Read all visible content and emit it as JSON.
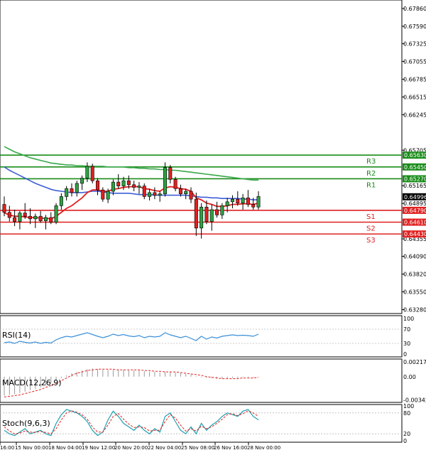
{
  "chart_data": {
    "type": "candlestick",
    "main": {
      "y_ticks": [
        "0.67860",
        "0.67590",
        "0.67325",
        "0.67055",
        "0.66785",
        "0.66515",
        "0.66245",
        "0.65705",
        "0.65165",
        "0.64895",
        "0.64355",
        "0.64090",
        "0.63820",
        "0.63550",
        "0.63280"
      ],
      "y_tick_values": [
        0.6786,
        0.6759,
        0.67325,
        0.67055,
        0.66785,
        0.66515,
        0.66245,
        0.65705,
        0.65165,
        0.64895,
        0.64355,
        0.6409,
        0.6382,
        0.6355,
        0.6328
      ],
      "ylim": [
        0.6322,
        0.6799
      ],
      "current_price": "0.64996",
      "current_price_value": 0.64996,
      "levels": [
        {
          "name": "R3",
          "label": "0.65630",
          "value": 0.6563,
          "color": "#1a8c1a"
        },
        {
          "name": "R2",
          "label": "0.65450",
          "value": 0.6545,
          "color": "#1a8c1a"
        },
        {
          "name": "R1",
          "label": "0.65270",
          "value": 0.6527,
          "color": "#1a8c1a"
        },
        {
          "name": "S1",
          "label": "0.64790",
          "value": 0.6479,
          "color": "#e02020"
        },
        {
          "name": "S2",
          "label": "0.64610",
          "value": 0.6461,
          "color": "#e02020"
        },
        {
          "name": "S3",
          "label": "0.64430",
          "value": 0.6443,
          "color": "#e02020"
        }
      ],
      "candles": [
        [
          0.6488,
          0.65,
          0.647,
          0.6476
        ],
        [
          0.6476,
          0.6486,
          0.6462,
          0.6468
        ],
        [
          0.6468,
          0.648,
          0.6455,
          0.6462
        ],
        [
          0.6462,
          0.6478,
          0.645,
          0.6475
        ],
        [
          0.6475,
          0.649,
          0.6466,
          0.647
        ],
        [
          0.647,
          0.6482,
          0.6458,
          0.6466
        ],
        [
          0.6466,
          0.6474,
          0.6452,
          0.647
        ],
        [
          0.647,
          0.6478,
          0.646,
          0.6463
        ],
        [
          0.6463,
          0.6472,
          0.645,
          0.6468
        ],
        [
          0.6468,
          0.6476,
          0.6458,
          0.6461
        ],
        [
          0.6461,
          0.649,
          0.6458,
          0.6486
        ],
        [
          0.6486,
          0.6505,
          0.648,
          0.65
        ],
        [
          0.65,
          0.6516,
          0.6494,
          0.6512
        ],
        [
          0.6512,
          0.652,
          0.65,
          0.6506
        ],
        [
          0.6506,
          0.6524,
          0.65,
          0.652
        ],
        [
          0.652,
          0.6532,
          0.651,
          0.6528
        ],
        [
          0.6528,
          0.6552,
          0.6522,
          0.6546
        ],
        [
          0.6546,
          0.655,
          0.652,
          0.6524
        ],
        [
          0.6524,
          0.6528,
          0.6502,
          0.651
        ],
        [
          0.651,
          0.6514,
          0.6492,
          0.6496
        ],
        [
          0.6496,
          0.6512,
          0.649,
          0.6508
        ],
        [
          0.6508,
          0.6526,
          0.6502,
          0.6522
        ],
        [
          0.6522,
          0.6534,
          0.6512,
          0.6516
        ],
        [
          0.6516,
          0.653,
          0.651,
          0.6524
        ],
        [
          0.6524,
          0.6532,
          0.6512,
          0.6518
        ],
        [
          0.6518,
          0.6524,
          0.6508,
          0.6514
        ],
        [
          0.6514,
          0.6522,
          0.6504,
          0.6516
        ],
        [
          0.6516,
          0.652,
          0.6496,
          0.65
        ],
        [
          0.65,
          0.6512,
          0.6494,
          0.6506
        ],
        [
          0.6506,
          0.6514,
          0.6496,
          0.6502
        ],
        [
          0.6502,
          0.6508,
          0.6492,
          0.6504
        ],
        [
          0.6504,
          0.6552,
          0.65,
          0.6544
        ],
        [
          0.6544,
          0.6548,
          0.652,
          0.6526
        ],
        [
          0.6526,
          0.653,
          0.6508,
          0.6512
        ],
        [
          0.6512,
          0.6518,
          0.65,
          0.6504
        ],
        [
          0.6504,
          0.6512,
          0.6496,
          0.6508
        ],
        [
          0.6508,
          0.6514,
          0.649,
          0.6496
        ],
        [
          0.6496,
          0.6506,
          0.644,
          0.6452
        ],
        [
          0.6452,
          0.649,
          0.6436,
          0.6484
        ],
        [
          0.6484,
          0.6494,
          0.6458,
          0.6462
        ],
        [
          0.6462,
          0.6488,
          0.6448,
          0.648
        ],
        [
          0.648,
          0.6492,
          0.6468,
          0.6472
        ],
        [
          0.6472,
          0.649,
          0.6466,
          0.6486
        ],
        [
          0.6486,
          0.6498,
          0.6476,
          0.6492
        ],
        [
          0.6492,
          0.6502,
          0.6482,
          0.6496
        ],
        [
          0.6496,
          0.6508,
          0.6486,
          0.649
        ],
        [
          0.649,
          0.6504,
          0.648,
          0.6498
        ],
        [
          0.6498,
          0.651,
          0.6484,
          0.6488
        ],
        [
          0.6488,
          0.6498,
          0.648,
          0.6484
        ],
        [
          0.6484,
          0.6508,
          0.648,
          0.65
        ]
      ],
      "ema_red": [
        0.6475,
        0.6472,
        0.647,
        0.647,
        0.6469,
        0.6468,
        0.6468,
        0.6467,
        0.6467,
        0.6466,
        0.647,
        0.6476,
        0.6482,
        0.6486,
        0.6492,
        0.6498,
        0.6506,
        0.651,
        0.651,
        0.6508,
        0.6508,
        0.6511,
        0.6512,
        0.6514,
        0.6515,
        0.6515,
        0.6515,
        0.6512,
        0.6511,
        0.6509,
        0.6508,
        0.6513,
        0.6515,
        0.6514,
        0.6512,
        0.6511,
        0.6508,
        0.6498,
        0.6495,
        0.649,
        0.6488,
        0.6485,
        0.6485,
        0.6486,
        0.6488,
        0.6488,
        0.6489,
        0.6489,
        0.6488,
        0.649
      ],
      "sma_blue": [
        0.6545,
        0.654,
        0.6536,
        0.6532,
        0.6528,
        0.6524,
        0.652,
        0.6517,
        0.6514,
        0.6511,
        0.6509,
        0.6508,
        0.6507,
        0.6506,
        0.6506,
        0.6506,
        0.6507,
        0.6508,
        0.6508,
        0.6507,
        0.6506,
        0.6505,
        0.6505,
        0.6505,
        0.6505,
        0.6504,
        0.6503,
        0.6503,
        0.6503,
        0.6502,
        0.6502,
        0.6502,
        0.6502,
        0.6502,
        0.6502,
        0.6502,
        0.6501,
        0.65,
        0.6499,
        0.6499,
        0.6498,
        0.6498,
        0.6497,
        0.6497,
        0.6497,
        0.6497,
        0.6496,
        0.6496,
        0.6495,
        0.6495
      ],
      "sma_green": [
        0.6576,
        0.6572,
        0.6568,
        0.6565,
        0.6562,
        0.6559,
        0.6557,
        0.6555,
        0.6553,
        0.6551,
        0.655,
        0.6549,
        0.6548,
        0.6548,
        0.6547,
        0.6547,
        0.6546,
        0.6546,
        0.6546,
        0.6546,
        0.6545,
        0.6545,
        0.6545,
        0.6545,
        0.6544,
        0.6544,
        0.6543,
        0.6543,
        0.6542,
        0.6542,
        0.6541,
        0.6541,
        0.654,
        0.654,
        0.6539,
        0.6538,
        0.6537,
        0.6536,
        0.6535,
        0.6534,
        0.6533,
        0.6532,
        0.6531,
        0.653,
        0.6529,
        0.6528,
        0.6527,
        0.6526,
        0.6525,
        0.6525
      ]
    },
    "rsi": {
      "label": "RSI(14)",
      "y_ticks": [
        "100",
        "70",
        "30",
        "0"
      ],
      "y_tick_values": [
        100,
        70,
        30,
        0
      ],
      "values": [
        32,
        34,
        30,
        36,
        33,
        31,
        34,
        30,
        33,
        31,
        40,
        46,
        50,
        48,
        52,
        56,
        60,
        55,
        50,
        46,
        50,
        56,
        52,
        55,
        51,
        49,
        52,
        46,
        50,
        48,
        50,
        60,
        54,
        50,
        46,
        50,
        44,
        38,
        50,
        42,
        48,
        45,
        50,
        52,
        54,
        52,
        53,
        52,
        50,
        56
      ]
    },
    "macd": {
      "label": "MACD(12,26,9)",
      "y_ticks": [
        "0.002171",
        "0.00",
        "-0.003423"
      ],
      "y_tick_values": [
        0.002171,
        0.0,
        -0.003423
      ],
      "hist": [
        -0.0028,
        -0.0027,
        -0.0026,
        -0.0024,
        -0.0022,
        -0.002,
        -0.0018,
        -0.0016,
        -0.0013,
        -0.001,
        -0.0006,
        -0.0002,
        0.0002,
        0.0005,
        0.0007,
        0.0009,
        0.0011,
        0.0012,
        0.0011,
        0.001,
        0.001,
        0.001,
        0.001,
        0.001,
        0.0009,
        0.0009,
        0.0009,
        0.0008,
        0.0007,
        0.0007,
        0.0006,
        0.0007,
        0.0007,
        0.0006,
        0.0005,
        0.0004,
        0.0003,
        0.0001,
        -0.0001,
        -0.0002,
        -0.0002,
        -0.0003,
        -0.0003,
        -0.0002,
        -0.0002,
        -0.0002,
        -0.0001,
        -0.0001,
        -0.0001,
        0.0
      ],
      "signal": [
        -0.003,
        -0.0029,
        -0.0028,
        -0.0027,
        -0.0025,
        -0.0023,
        -0.0021,
        -0.0019,
        -0.0016,
        -0.0013,
        -0.001,
        -0.0006,
        -0.0002,
        0.0002,
        0.0005,
        0.0007,
        0.0009,
        0.001,
        0.0011,
        0.0011,
        0.0011,
        0.0011,
        0.001,
        0.001,
        0.001,
        0.001,
        0.001,
        0.0009,
        0.0009,
        0.0008,
        0.0008,
        0.0007,
        0.0007,
        0.0007,
        0.0006,
        0.0005,
        0.0004,
        0.0003,
        0.0002,
        0.0,
        -0.0001,
        -0.0002,
        -0.0003,
        -0.0003,
        -0.0003,
        -0.0003,
        -0.0002,
        -0.0002,
        -0.0002,
        -0.0001
      ]
    },
    "stoch": {
      "label": "Stoch(9,6,3)",
      "y_ticks": [
        "100",
        "80",
        "20",
        "0"
      ],
      "y_tick_values": [
        100,
        80,
        20,
        0
      ],
      "k": [
        30,
        20,
        15,
        25,
        35,
        20,
        25,
        30,
        20,
        15,
        50,
        75,
        90,
        85,
        80,
        70,
        55,
        30,
        15,
        25,
        60,
        85,
        70,
        50,
        40,
        30,
        45,
        30,
        20,
        35,
        25,
        70,
        80,
        55,
        30,
        20,
        40,
        20,
        50,
        30,
        45,
        55,
        70,
        80,
        75,
        70,
        85,
        90,
        70,
        60
      ],
      "d": [
        40,
        28,
        20,
        22,
        28,
        25,
        24,
        27,
        24,
        20,
        35,
        60,
        80,
        86,
        82,
        75,
        62,
        40,
        25,
        25,
        45,
        70,
        78,
        62,
        48,
        38,
        40,
        38,
        28,
        30,
        30,
        55,
        75,
        65,
        45,
        28,
        35,
        28,
        42,
        35,
        40,
        50,
        62,
        75,
        78,
        72,
        78,
        86,
        80,
        70
      ]
    },
    "x_ticks": [
      "16:00",
      "15 Nov 00:00",
      "18 Nov 04:00",
      "19 Nov 12:00",
      "20 Nov 20:00",
      "22 Nov 04:00",
      "25 Nov 08:00",
      "26 Nov 16:00",
      "28 Nov 00:00"
    ]
  }
}
